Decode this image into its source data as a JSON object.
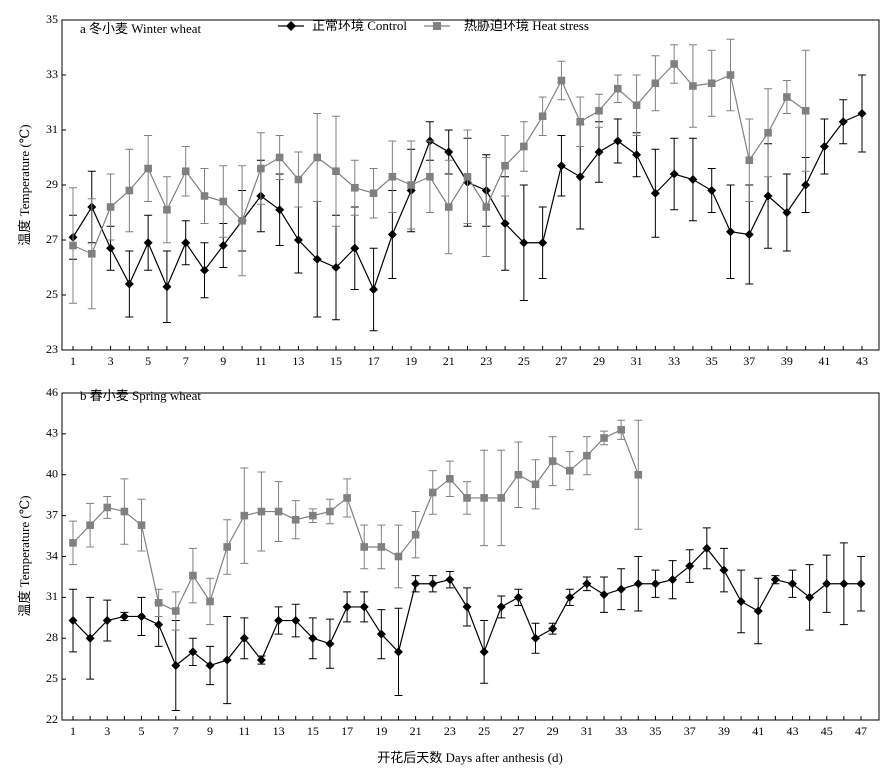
{
  "legend": [
    {
      "label": "正常环境 Control",
      "marker": "diamond",
      "color": "#000000"
    },
    {
      "label": "热胁迫环境 Heat stress",
      "marker": "square",
      "color": "#808080"
    }
  ],
  "xlabel": "开花后天数 Days after anthesis (d)",
  "chart_data": [
    {
      "type": "line",
      "title": "a  冬小麦 Winter wheat",
      "xlabel": "",
      "ylabel": "温度 Temperature (℃)",
      "xlim": [
        1,
        43
      ],
      "ylim": [
        23,
        35
      ],
      "xticks": [
        1,
        3,
        5,
        7,
        9,
        11,
        13,
        15,
        17,
        19,
        21,
        23,
        25,
        27,
        29,
        31,
        33,
        35,
        37,
        39,
        41,
        43
      ],
      "yticks": [
        23,
        25,
        27,
        29,
        31,
        33,
        35
      ],
      "series": [
        {
          "name": "正常环境 Control",
          "color": "#000000",
          "marker": "diamond",
          "x": [
            1,
            2,
            3,
            4,
            5,
            6,
            7,
            8,
            9,
            10,
            11,
            12,
            13,
            14,
            15,
            16,
            17,
            18,
            19,
            20,
            21,
            22,
            23,
            24,
            25,
            26,
            27,
            28,
            29,
            30,
            31,
            32,
            33,
            34,
            35,
            36,
            37,
            38,
            39,
            40,
            41,
            42,
            43
          ],
          "values": [
            27.1,
            28.2,
            26.7,
            25.4,
            26.9,
            25.3,
            26.9,
            25.9,
            26.8,
            27.7,
            28.6,
            28.1,
            27.0,
            26.3,
            26.0,
            26.7,
            25.2,
            27.2,
            28.8,
            30.6,
            30.2,
            29.1,
            28.8,
            27.6,
            26.9,
            26.9,
            29.7,
            29.3,
            30.2,
            30.6,
            30.1,
            28.7,
            29.4,
            29.2,
            28.8,
            27.3,
            27.2,
            28.6,
            28.0,
            29.0,
            30.4,
            31.3,
            31.6
          ],
          "error": [
            0.8,
            1.3,
            0.8,
            1.2,
            1.0,
            1.3,
            0.8,
            1.0,
            0.8,
            1.1,
            1.3,
            1.3,
            1.2,
            2.1,
            1.9,
            1.5,
            1.5,
            1.6,
            1.5,
            0.7,
            0.8,
            1.6,
            1.3,
            1.7,
            2.1,
            1.3,
            1.1,
            1.9,
            1.1,
            0.8,
            0.8,
            1.6,
            1.3,
            1.5,
            0.8,
            1.7,
            1.8,
            1.9,
            1.4,
            1.0,
            1.0,
            0.8,
            1.4
          ]
        },
        {
          "name": "热胁迫环境 Heat stress",
          "color": "#808080",
          "marker": "square",
          "x": [
            1,
            2,
            3,
            4,
            5,
            6,
            7,
            8,
            9,
            10,
            11,
            12,
            13,
            14,
            15,
            16,
            17,
            18,
            19,
            20,
            21,
            22,
            23,
            24,
            25,
            26,
            27,
            28,
            29,
            30,
            31,
            32,
            33,
            34,
            35,
            36,
            37,
            38,
            39,
            40
          ],
          "values": [
            26.8,
            26.5,
            28.2,
            28.8,
            29.6,
            28.1,
            29.5,
            28.6,
            28.4,
            27.7,
            29.6,
            30.0,
            29.2,
            30.0,
            29.5,
            28.9,
            28.7,
            29.3,
            29.0,
            29.3,
            28.2,
            29.3,
            28.2,
            29.7,
            30.4,
            31.5,
            32.8,
            31.3,
            31.7,
            32.5,
            31.9,
            32.7,
            33.4,
            32.6,
            32.7,
            33.0,
            29.9,
            30.9,
            32.2,
            31.7
          ],
          "error": [
            2.1,
            2.0,
            1.2,
            1.5,
            1.2,
            1.2,
            0.9,
            1.0,
            1.3,
            2.0,
            1.3,
            0.8,
            1.0,
            1.6,
            2.0,
            1.0,
            0.9,
            1.3,
            1.6,
            1.3,
            1.7,
            1.7,
            1.8,
            1.1,
            0.9,
            0.7,
            0.7,
            0.9,
            0.6,
            0.5,
            1.1,
            1.0,
            0.7,
            1.5,
            1.2,
            1.3,
            1.5,
            1.6,
            0.6,
            2.2
          ]
        }
      ]
    },
    {
      "type": "line",
      "title": "b  春小麦 Spring wheat",
      "xlabel": "",
      "ylabel": "温度 Temperature (℃)",
      "xlim": [
        1,
        47
      ],
      "ylim": [
        22,
        46
      ],
      "xticks": [
        1,
        3,
        5,
        7,
        9,
        11,
        13,
        15,
        17,
        19,
        21,
        23,
        25,
        27,
        29,
        31,
        33,
        35,
        37,
        39,
        41,
        43,
        45,
        47
      ],
      "yticks": [
        22,
        25,
        28,
        31,
        34,
        37,
        40,
        43,
        46
      ],
      "ytick_labels": [
        "22",
        "25",
        "28",
        "31",
        "34",
        "37",
        "40",
        "43",
        "46"
      ],
      "series": [
        {
          "name": "正常环境 Control",
          "color": "#000000",
          "marker": "diamond",
          "x": [
            1,
            2,
            3,
            4,
            5,
            6,
            7,
            8,
            9,
            10,
            11,
            12,
            13,
            14,
            15,
            16,
            17,
            18,
            19,
            20,
            21,
            22,
            23,
            24,
            25,
            26,
            27,
            28,
            29,
            30,
            31,
            32,
            33,
            34,
            35,
            36,
            37,
            38,
            39,
            40,
            41,
            42,
            43,
            44,
            45,
            46,
            47
          ],
          "values": [
            29.3,
            28.0,
            29.3,
            29.6,
            29.6,
            29.0,
            26.0,
            27.0,
            26.0,
            26.4,
            28.0,
            26.4,
            29.3,
            29.3,
            28.0,
            27.6,
            30.3,
            30.3,
            28.3,
            27.0,
            32.0,
            32.0,
            32.3,
            30.3,
            27.0,
            30.3,
            31.0,
            28.0,
            28.7,
            31.0,
            32.0,
            31.2,
            31.6,
            32.0,
            32.0,
            32.3,
            33.3,
            34.6,
            33.0,
            30.7,
            30.0,
            32.3,
            32.0,
            31.0,
            32.0,
            32.0,
            32.0
          ],
          "error": [
            2.3,
            3.0,
            1.5,
            0.3,
            1.4,
            1.6,
            3.3,
            1.0,
            1.4,
            3.2,
            1.5,
            0.3,
            1.0,
            1.2,
            1.5,
            1.8,
            1.1,
            1.1,
            1.8,
            3.2,
            0.6,
            0.6,
            0.6,
            1.4,
            2.3,
            0.8,
            0.6,
            1.1,
            0.4,
            0.6,
            0.5,
            1.3,
            1.5,
            2.0,
            1.0,
            1.4,
            1.2,
            1.5,
            1.6,
            2.3,
            2.4,
            0.3,
            1.0,
            2.4,
            2.1,
            3.0,
            2.0
          ]
        },
        {
          "name": "热胁迫环境 Heat stress",
          "color": "#808080",
          "marker": "square",
          "x": [
            1,
            2,
            3,
            4,
            5,
            6,
            7,
            8,
            9,
            10,
            11,
            12,
            13,
            14,
            15,
            16,
            17,
            18,
            19,
            20,
            21,
            22,
            23,
            24,
            25,
            26,
            27,
            28,
            29,
            30,
            31,
            32,
            33,
            34
          ],
          "values": [
            35.0,
            36.3,
            37.6,
            37.3,
            36.3,
            30.6,
            30.0,
            32.6,
            30.7,
            34.7,
            37.0,
            37.3,
            37.3,
            36.7,
            37.0,
            37.3,
            38.3,
            34.7,
            34.7,
            34.0,
            35.6,
            38.7,
            39.7,
            38.3,
            38.3,
            38.3,
            40.0,
            39.3,
            41.0,
            40.3,
            41.4,
            42.7,
            43.3,
            40.0
          ],
          "error": [
            1.6,
            1.6,
            0.8,
            2.4,
            1.9,
            1.0,
            1.4,
            2.0,
            1.7,
            2.0,
            3.5,
            2.9,
            2.2,
            1.4,
            0.5,
            0.9,
            1.4,
            1.6,
            1.6,
            2.3,
            1.7,
            1.6,
            1.3,
            1.2,
            3.5,
            3.5,
            2.4,
            1.8,
            1.8,
            1.4,
            1.4,
            0.5,
            0.7,
            4.0
          ]
        }
      ]
    }
  ]
}
